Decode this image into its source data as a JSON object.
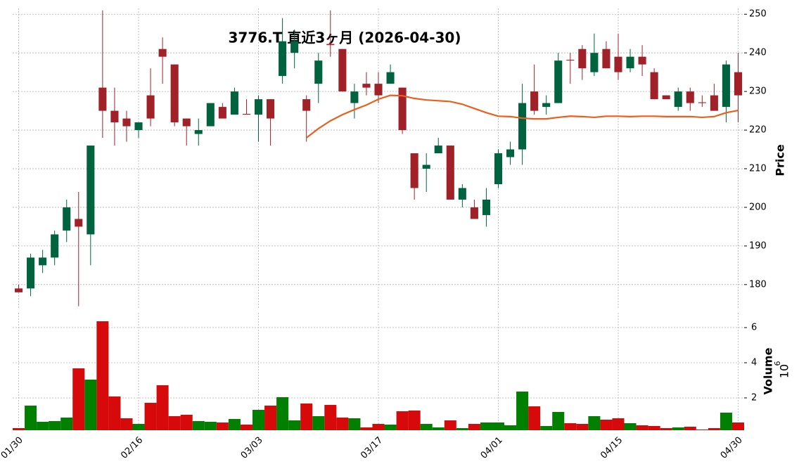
{
  "chart_data": {
    "type": "candlestick",
    "title": "3776.T 直近3ヶ月 (2026-04-30)",
    "categories": [
      "01/30",
      null,
      null,
      null,
      null,
      null,
      null,
      null,
      null,
      null,
      "02/16",
      null,
      null,
      null,
      null,
      null,
      null,
      null,
      null,
      null,
      "03/03",
      null,
      null,
      null,
      null,
      null,
      null,
      null,
      null,
      null,
      "03/17",
      null,
      null,
      null,
      null,
      null,
      null,
      null,
      null,
      null,
      "04/01",
      null,
      null,
      null,
      null,
      null,
      null,
      null,
      null,
      null,
      "04/15",
      null,
      null,
      null,
      null,
      null,
      null,
      null,
      null,
      null,
      "04/30"
    ],
    "open": [
      179,
      179,
      185,
      187,
      194,
      197,
      193,
      231,
      225,
      223,
      220,
      229,
      241,
      237,
      223,
      219,
      221,
      226,
      224,
      224.2,
      224,
      228,
      234,
      240,
      228,
      232,
      242.3,
      241,
      227,
      232,
      232,
      232,
      231,
      214,
      210,
      214,
      216,
      202,
      200,
      198,
      206,
      213,
      215,
      230,
      226,
      227,
      238.2,
      241,
      235,
      241,
      239,
      236,
      239,
      235,
      229,
      226,
      230,
      227.2,
      229,
      226,
      235
    ],
    "high": [
      180,
      188,
      189,
      194,
      202,
      204,
      216,
      251,
      231,
      225,
      222,
      236,
      244,
      237,
      223,
      223,
      227,
      227,
      231,
      228,
      229,
      228,
      249,
      246,
      229,
      240,
      251,
      241,
      232,
      235,
      235,
      237,
      231,
      214,
      214,
      218,
      216,
      206,
      202,
      205,
      215,
      217,
      232,
      237,
      229,
      240,
      240,
      242,
      245,
      243,
      245,
      241,
      242,
      236,
      229,
      231,
      231,
      229,
      232,
      238,
      240
    ],
    "low": [
      178,
      177,
      183,
      185,
      191,
      174.4,
      185,
      218,
      216,
      217,
      218,
      221,
      232,
      221,
      216,
      216,
      221,
      223,
      224,
      224,
      217,
      216,
      232,
      236,
      217,
      227,
      239,
      230,
      223,
      229,
      227,
      232,
      219,
      202,
      204,
      214,
      202,
      200,
      197,
      195,
      205,
      211,
      211,
      224,
      224,
      227,
      232,
      233,
      234,
      236,
      233,
      235,
      234,
      228,
      228,
      225,
      225,
      226,
      225,
      222,
      222
    ],
    "close": [
      178,
      187,
      187,
      193,
      200,
      195,
      216,
      225,
      222,
      221,
      222,
      223,
      239,
      222,
      221,
      220,
      227,
      223,
      230,
      224,
      228,
      223,
      243,
      243,
      225,
      238,
      242,
      230,
      230,
      231,
      229,
      235,
      220,
      205,
      211,
      216,
      202,
      205,
      197,
      202,
      214,
      215,
      227,
      225,
      227,
      238,
      238,
      236,
      240,
      236,
      235,
      239,
      237,
      228,
      228,
      230,
      227,
      227,
      225,
      237,
      229
    ],
    "ma": [
      null,
      null,
      null,
      null,
      null,
      null,
      null,
      null,
      null,
      null,
      null,
      null,
      null,
      null,
      null,
      null,
      null,
      null,
      null,
      null,
      null,
      null,
      null,
      null,
      218,
      220.4,
      222.4,
      224,
      225.3,
      226.5,
      228,
      229,
      228.9,
      228.2,
      227.8,
      227.6,
      227.4,
      226.7,
      225.6,
      224.5,
      223.6,
      223.5,
      223.1,
      222.9,
      222.9,
      223.3,
      223.6,
      223.5,
      223.3,
      223.6,
      223.6,
      223.5,
      223.6,
      223.6,
      223.5,
      223.5,
      223.5,
      223.3,
      223.5,
      224.5,
      225.1
    ],
    "volume": [
      0.28,
      1.56,
      0.64,
      0.68,
      0.88,
      3.68,
      3.04,
      6.36,
      2.08,
      0.84,
      0.52,
      1.72,
      2.72,
      0.96,
      1.04,
      0.68,
      0.64,
      0.6,
      0.8,
      0.48,
      1.32,
      1.56,
      2.04,
      0.72,
      1.68,
      0.96,
      1.6,
      0.88,
      0.84,
      0.32,
      0.52,
      0.48,
      1.24,
      1.28,
      0.52,
      0.32,
      0.72,
      0.28,
      0.52,
      0.6,
      0.6,
      0.44,
      2.36,
      1.52,
      0.4,
      1.2,
      0.56,
      0.52,
      0.96,
      0.76,
      0.84,
      0.56,
      0.44,
      0.4,
      0.28,
      0.32,
      0.36,
      0.2,
      0.28,
      1.16,
      0.6
    ],
    "ylabel": "Price",
    "ylim": [
      173.6,
      251.5
    ],
    "yticks": [
      180,
      190,
      200,
      210,
      220,
      230,
      240,
      250
    ],
    "volume_label": "Volume",
    "volume_multiplier_base": "10",
    "volume_multiplier_exponent": "6",
    "volume_ylim": [
      0.16,
      6.84
    ],
    "volume_yticks": [
      2,
      4,
      6
    ],
    "up_color": "#006340",
    "down_color": "#a02128",
    "volume_up_color": "#007f00",
    "volume_down_color": "#d60a0a",
    "ma_color": "#e8601c",
    "grid": true
  }
}
